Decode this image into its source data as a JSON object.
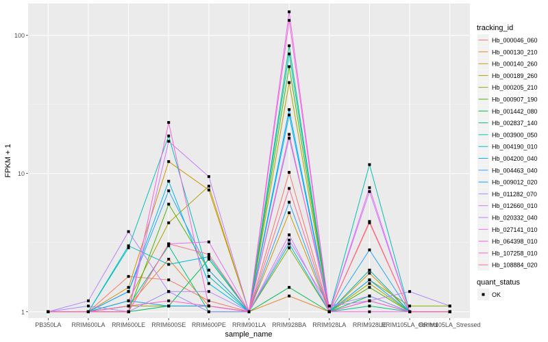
{
  "chart_data": {
    "type": "line",
    "title": "",
    "xlabel": "sample_name",
    "ylabel": "FPKM + 1",
    "y_scale": "log10",
    "ylim": [
      0.9,
      170
    ],
    "y_ticks": [
      1,
      10,
      100
    ],
    "y_tick_labels": [
      "1",
      "10",
      "100"
    ],
    "grid": true,
    "legend_position": "right",
    "categories": [
      "PB350LA",
      "RRIM600LA",
      "RRIM600LE",
      "RRIM600SE",
      "RRIM600PE",
      "RRIM901LA",
      "RRIM928BA",
      "RRIM928LA",
      "RRIM928LE",
      "RRIM105LA_Control",
      "RRIM105LA_Stressed"
    ],
    "legend": {
      "title": "tracking_id",
      "status_title": "quant_status",
      "status_label": "OK"
    },
    "series": [
      {
        "name": "Hb_000046_060",
        "color": "#F8766D",
        "values": [
          1.0,
          1.0,
          1.8,
          1.7,
          1.2,
          1.0,
          10.2,
          1.0,
          4.4,
          1.0,
          1.0
        ]
      },
      {
        "name": "Hb_000130_210",
        "color": "#E7851E",
        "values": [
          1.0,
          1.0,
          1.1,
          2.4,
          1.1,
          1.0,
          1.3,
          1.0,
          2.0,
          1.0,
          1.0
        ]
      },
      {
        "name": "Hb_000140_260",
        "color": "#D09400",
        "values": [
          1.0,
          1.0,
          1.5,
          12.2,
          7.6,
          1.0,
          5.2,
          1.0,
          1.9,
          1.0,
          1.0
        ]
      },
      {
        "name": "Hb_000189_260",
        "color": "#B2A100",
        "values": [
          1.0,
          1.0,
          1.2,
          4.4,
          8.1,
          1.0,
          45.5,
          1.0,
          1.6,
          1.0,
          1.0
        ]
      },
      {
        "name": "Hb_000205_210",
        "color": "#89AC00",
        "values": [
          1.0,
          1.0,
          1.1,
          1.1,
          1.1,
          1.0,
          2.9,
          1.0,
          1.7,
          1.1,
          1.1
        ]
      },
      {
        "name": "Hb_000907_190",
        "color": "#45B500",
        "values": [
          1.0,
          1.0,
          1.0,
          6.0,
          2.0,
          1.0,
          59.3,
          1.0,
          1.5,
          1.0,
          1.0
        ]
      },
      {
        "name": "Hb_001442_080",
        "color": "#00BC51",
        "values": [
          1.0,
          1.0,
          1.0,
          1.1,
          2.4,
          1.0,
          1.5,
          1.0,
          1.3,
          1.0,
          1.0
        ]
      },
      {
        "name": "Hb_002837_140",
        "color": "#00C087",
        "values": [
          1.0,
          1.0,
          1.1,
          3.0,
          1.0,
          1.0,
          84.0,
          1.0,
          1.1,
          1.0,
          1.0
        ]
      },
      {
        "name": "Hb_003900_050",
        "color": "#00C0B2",
        "values": [
          1.0,
          1.0,
          2.9,
          18.7,
          1.8,
          1.0,
          73.3,
          1.0,
          11.6,
          1.0,
          1.0
        ]
      },
      {
        "name": "Hb_004190_010",
        "color": "#00BCD6",
        "values": [
          1.0,
          1.0,
          3.0,
          2.2,
          2.5,
          1.0,
          3.1,
          1.0,
          2.0,
          1.0,
          1.0
        ]
      },
      {
        "name": "Hb_004200_040",
        "color": "#00B3F2",
        "values": [
          1.0,
          1.0,
          1.4,
          8.8,
          1.6,
          1.0,
          26.5,
          1.0,
          1.7,
          1.0,
          1.0
        ]
      },
      {
        "name": "Hb_004463_040",
        "color": "#29A3FF",
        "values": [
          1.0,
          1.0,
          1.4,
          7.5,
          2.0,
          1.0,
          6.2,
          1.0,
          2.8,
          1.0,
          1.0
        ]
      },
      {
        "name": "Hb_009012_020",
        "color": "#00A5FF",
        "values": [
          1.0,
          1.0,
          1.2,
          1.1,
          1.1,
          1.0,
          29.0,
          1.0,
          1.2,
          1.0,
          1.0
        ]
      },
      {
        "name": "Hb_011282_070",
        "color": "#9C8DFF",
        "values": [
          1.0,
          1.1,
          1.0,
          1.4,
          1.0,
          1.0,
          18.0,
          1.1,
          1.3,
          1.0,
          1.0
        ]
      },
      {
        "name": "Hb_012660_010",
        "color": "#C77CFF",
        "values": [
          1.0,
          1.0,
          1.0,
          17.1,
          9.5,
          1.0,
          3.6,
          1.0,
          7.4,
          1.0,
          1.0
        ]
      },
      {
        "name": "Hb_020332_040",
        "color": "#B983FF",
        "values": [
          1.0,
          1.2,
          3.8,
          1.4,
          1.4,
          1.0,
          3.3,
          1.1,
          1.2,
          1.4,
          1.1
        ]
      },
      {
        "name": "Hb_027141_010",
        "color": "#E76BF3",
        "values": [
          1.0,
          1.0,
          1.0,
          3.1,
          3.2,
          1.0,
          147.8,
          1.0,
          7.9,
          1.0,
          1.0
        ]
      },
      {
        "name": "Hb_064398_010",
        "color": "#FA62DB",
        "values": [
          1.0,
          1.0,
          1.0,
          23.4,
          1.1,
          1.0,
          128.2,
          1.0,
          1.0,
          1.0,
          1.0
        ]
      },
      {
        "name": "Hb_107258_010",
        "color": "#FF62BC",
        "values": [
          1.0,
          1.0,
          1.1,
          1.2,
          1.1,
          1.0,
          19.2,
          1.0,
          1.2,
          1.0,
          1.0
        ]
      },
      {
        "name": "Hb_108884_020",
        "color": "#FF6C91",
        "values": [
          1.0,
          1.0,
          1.0,
          3.1,
          2.6,
          1.0,
          7.8,
          1.0,
          4.5,
          1.0,
          1.0
        ]
      }
    ]
  }
}
